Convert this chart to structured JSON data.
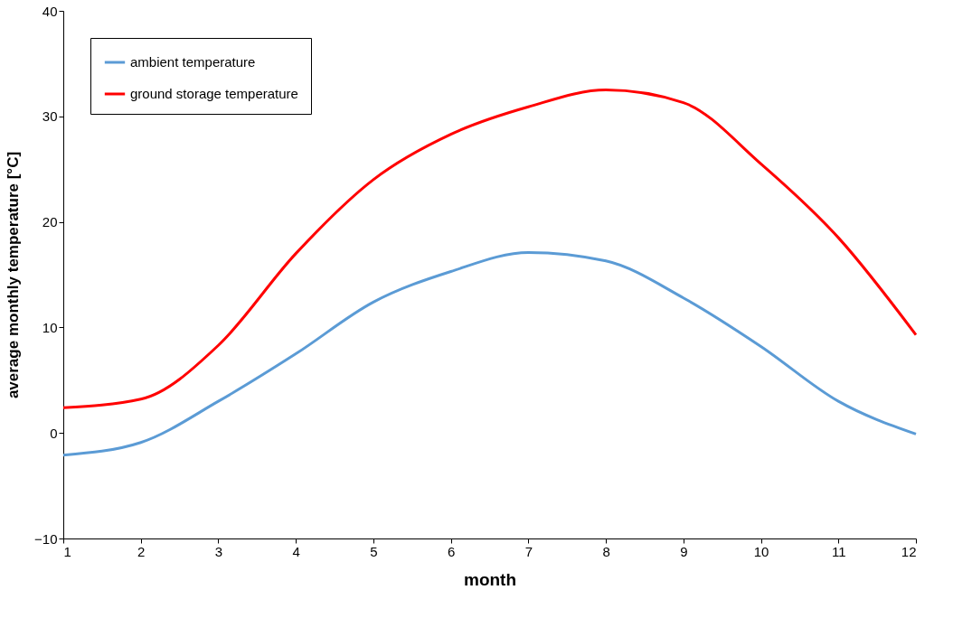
{
  "chart_data": {
    "type": "line",
    "xlabel": "month",
    "ylabel": "average monthly temperature [°C]",
    "x": [
      1,
      2,
      3,
      4,
      5,
      6,
      7,
      8,
      9,
      10,
      11,
      12
    ],
    "series": [
      {
        "name": "ambient temperature",
        "color": "#5b9bd5",
        "values": [
          -2.1,
          -0.9,
          3.0,
          7.5,
          12.4,
          15.3,
          17.1,
          16.3,
          12.8,
          8.2,
          3.0,
          -0.1
        ]
      },
      {
        "name": "ground storage temperature",
        "color": "#ff0000",
        "values": [
          2.4,
          3.2,
          8.3,
          17.0,
          24.0,
          28.3,
          30.9,
          32.5,
          31.3,
          25.5,
          18.5,
          9.3
        ]
      }
    ],
    "xlim": [
      1,
      12
    ],
    "xticks": [
      1,
      2,
      3,
      4,
      5,
      6,
      7,
      8,
      9,
      10,
      11,
      12
    ],
    "ylim": [
      -10,
      40
    ],
    "yticks": [
      -10,
      0,
      10,
      20,
      30,
      40
    ],
    "grid": false,
    "legend": "top left",
    "marker": "none",
    "line_style": "solid"
  }
}
